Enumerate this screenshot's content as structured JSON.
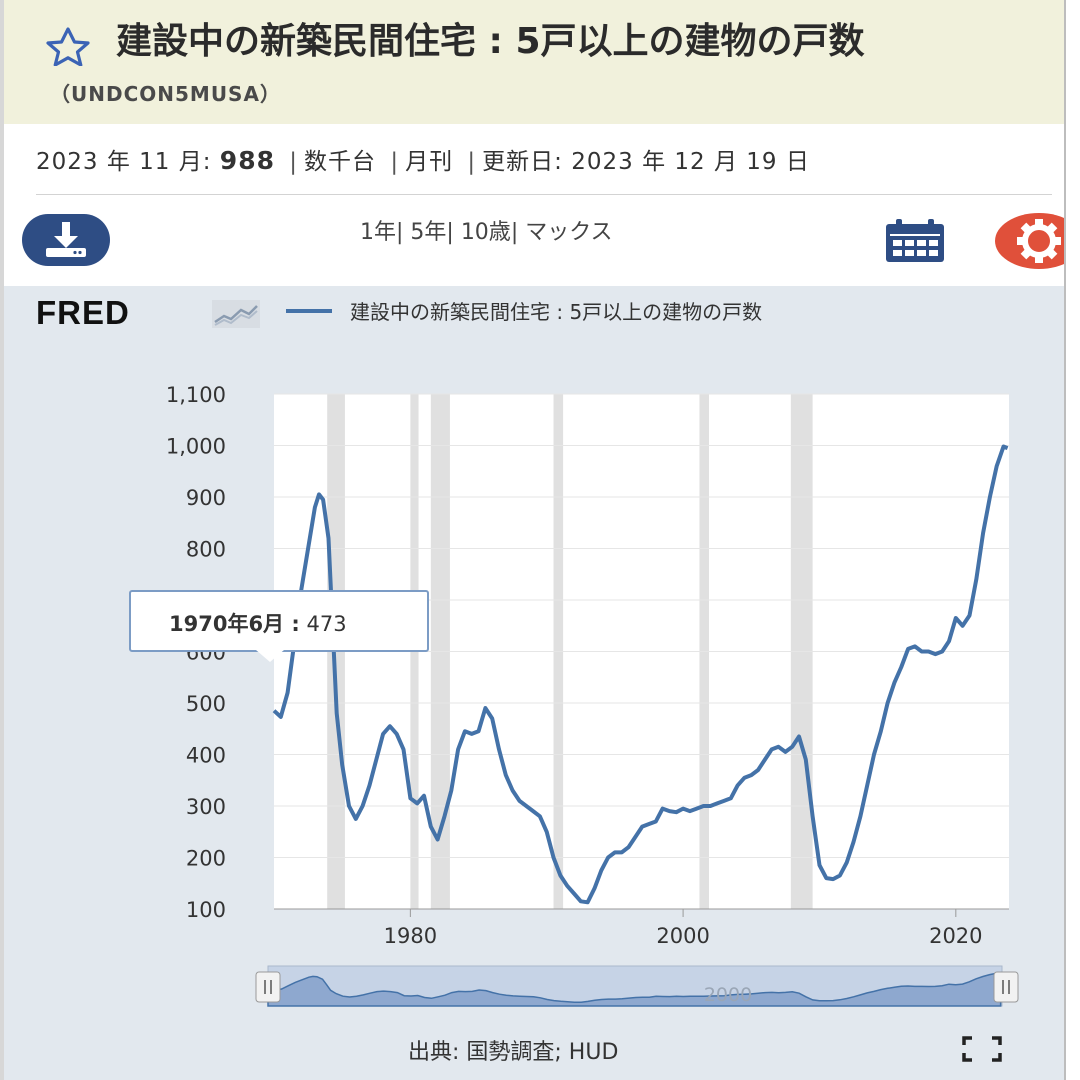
{
  "header": {
    "star_icon": "star-outline-icon",
    "title": "建設中の新築民間住宅 : 5戸以上の建物の戸数",
    "series_id": "（UNDCON5MUSA）"
  },
  "meta": {
    "date_label": "2023 年 11 月:",
    "value": "988",
    "units": "数千台",
    "frequency": "月刊",
    "updated": "更新日: 2023 年 12 月 19 日"
  },
  "toolbar": {
    "download_icon": "download-icon",
    "range_1y": "1年",
    "range_5y": "5年",
    "range_10y": "10歳",
    "range_max": "マックス",
    "calendar_icon": "calendar-icon",
    "settings_icon": "gear-icon"
  },
  "legend": {
    "logo": "FRED",
    "series_name": "建設中の新築民間住宅 : 5戸以上の建物の戸数"
  },
  "tooltip": {
    "date": "1970年6月 :",
    "value": "473"
  },
  "source": "出典: 国勢調査; HUD",
  "navigator": {
    "label": "2000"
  },
  "colors": {
    "line": "#4472a8",
    "recession": "#e0e0e0",
    "title_bg": "#f1f1dc",
    "panel_bg": "#e2e8ee"
  },
  "chart_data": {
    "type": "line",
    "xlim": [
      1970,
      2023.9
    ],
    "ylim": [
      100,
      1100
    ],
    "yticks": [
      100,
      200,
      300,
      400,
      500,
      600,
      700,
      800,
      900,
      1000,
      1100
    ],
    "ytick_labels": [
      "100",
      "200",
      "300",
      "400",
      "500",
      "600",
      "700",
      "800",
      "900",
      "1,000",
      "1,100"
    ],
    "xticks": [
      1980,
      2000,
      2020
    ],
    "xtick_labels": [
      "1980",
      "2000",
      "2020"
    ],
    "grid": "horizontal",
    "recessions": [
      [
        1973.9,
        1975.2
      ],
      [
        1980.0,
        1980.6
      ],
      [
        1981.5,
        1982.9
      ],
      [
        1990.5,
        1991.2
      ],
      [
        2001.2,
        2001.9
      ],
      [
        2007.9,
        2009.5
      ]
    ],
    "series": [
      {
        "x": [
          1970.0,
          1970.5,
          1971.0,
          1971.5,
          1972.0,
          1972.5,
          1973.0,
          1973.3,
          1973.6,
          1974.0,
          1974.3,
          1974.6,
          1975.0,
          1975.5,
          1976.0,
          1976.5,
          1977.0,
          1977.5,
          1978.0,
          1978.5,
          1979.0,
          1979.5,
          1980.0,
          1980.5,
          1981.0,
          1981.5,
          1982.0,
          1982.5,
          1983.0,
          1983.5,
          1984.0,
          1984.5,
          1985.0,
          1985.5,
          1986.0,
          1986.5,
          1987.0,
          1987.5,
          1988.0,
          1988.5,
          1989.0,
          1989.5,
          1990.0,
          1990.5,
          1991.0,
          1991.5,
          1992.0,
          1992.5,
          1993.0,
          1993.5,
          1994.0,
          1994.5,
          1995.0,
          1995.5,
          1996.0,
          1996.5,
          1997.0,
          1997.5,
          1998.0,
          1998.5,
          1999.0,
          1999.5,
          2000.0,
          2000.5,
          2001.0,
          2001.5,
          2002.0,
          2002.5,
          2003.0,
          2003.5,
          2004.0,
          2004.5,
          2005.0,
          2005.5,
          2006.0,
          2006.5,
          2007.0,
          2007.5,
          2008.0,
          2008.5,
          2009.0,
          2009.5,
          2010.0,
          2010.5,
          2011.0,
          2011.5,
          2012.0,
          2012.5,
          2013.0,
          2013.5,
          2014.0,
          2014.5,
          2015.0,
          2015.5,
          2016.0,
          2016.5,
          2017.0,
          2017.5,
          2018.0,
          2018.5,
          2019.0,
          2019.5,
          2020.0,
          2020.5,
          2021.0,
          2021.5,
          2022.0,
          2022.5,
          2023.0,
          2023.5,
          2023.8
        ],
        "y": [
          485,
          473,
          520,
          620,
          720,
          800,
          880,
          905,
          895,
          820,
          650,
          480,
          380,
          300,
          275,
          300,
          340,
          390,
          440,
          455,
          440,
          410,
          315,
          305,
          320,
          260,
          235,
          280,
          330,
          410,
          445,
          440,
          445,
          490,
          470,
          410,
          360,
          330,
          310,
          300,
          290,
          280,
          250,
          200,
          165,
          145,
          130,
          115,
          113,
          140,
          175,
          200,
          210,
          210,
          220,
          240,
          260,
          265,
          270,
          295,
          290,
          288,
          295,
          290,
          295,
          300,
          300,
          305,
          310,
          315,
          340,
          355,
          360,
          370,
          390,
          410,
          415,
          405,
          415,
          435,
          390,
          280,
          185,
          160,
          158,
          165,
          190,
          230,
          280,
          340,
          400,
          445,
          500,
          540,
          570,
          605,
          610,
          600,
          600,
          595,
          600,
          620,
          665,
          650,
          670,
          740,
          830,
          900,
          960,
          998,
          995
        ]
      }
    ]
  }
}
